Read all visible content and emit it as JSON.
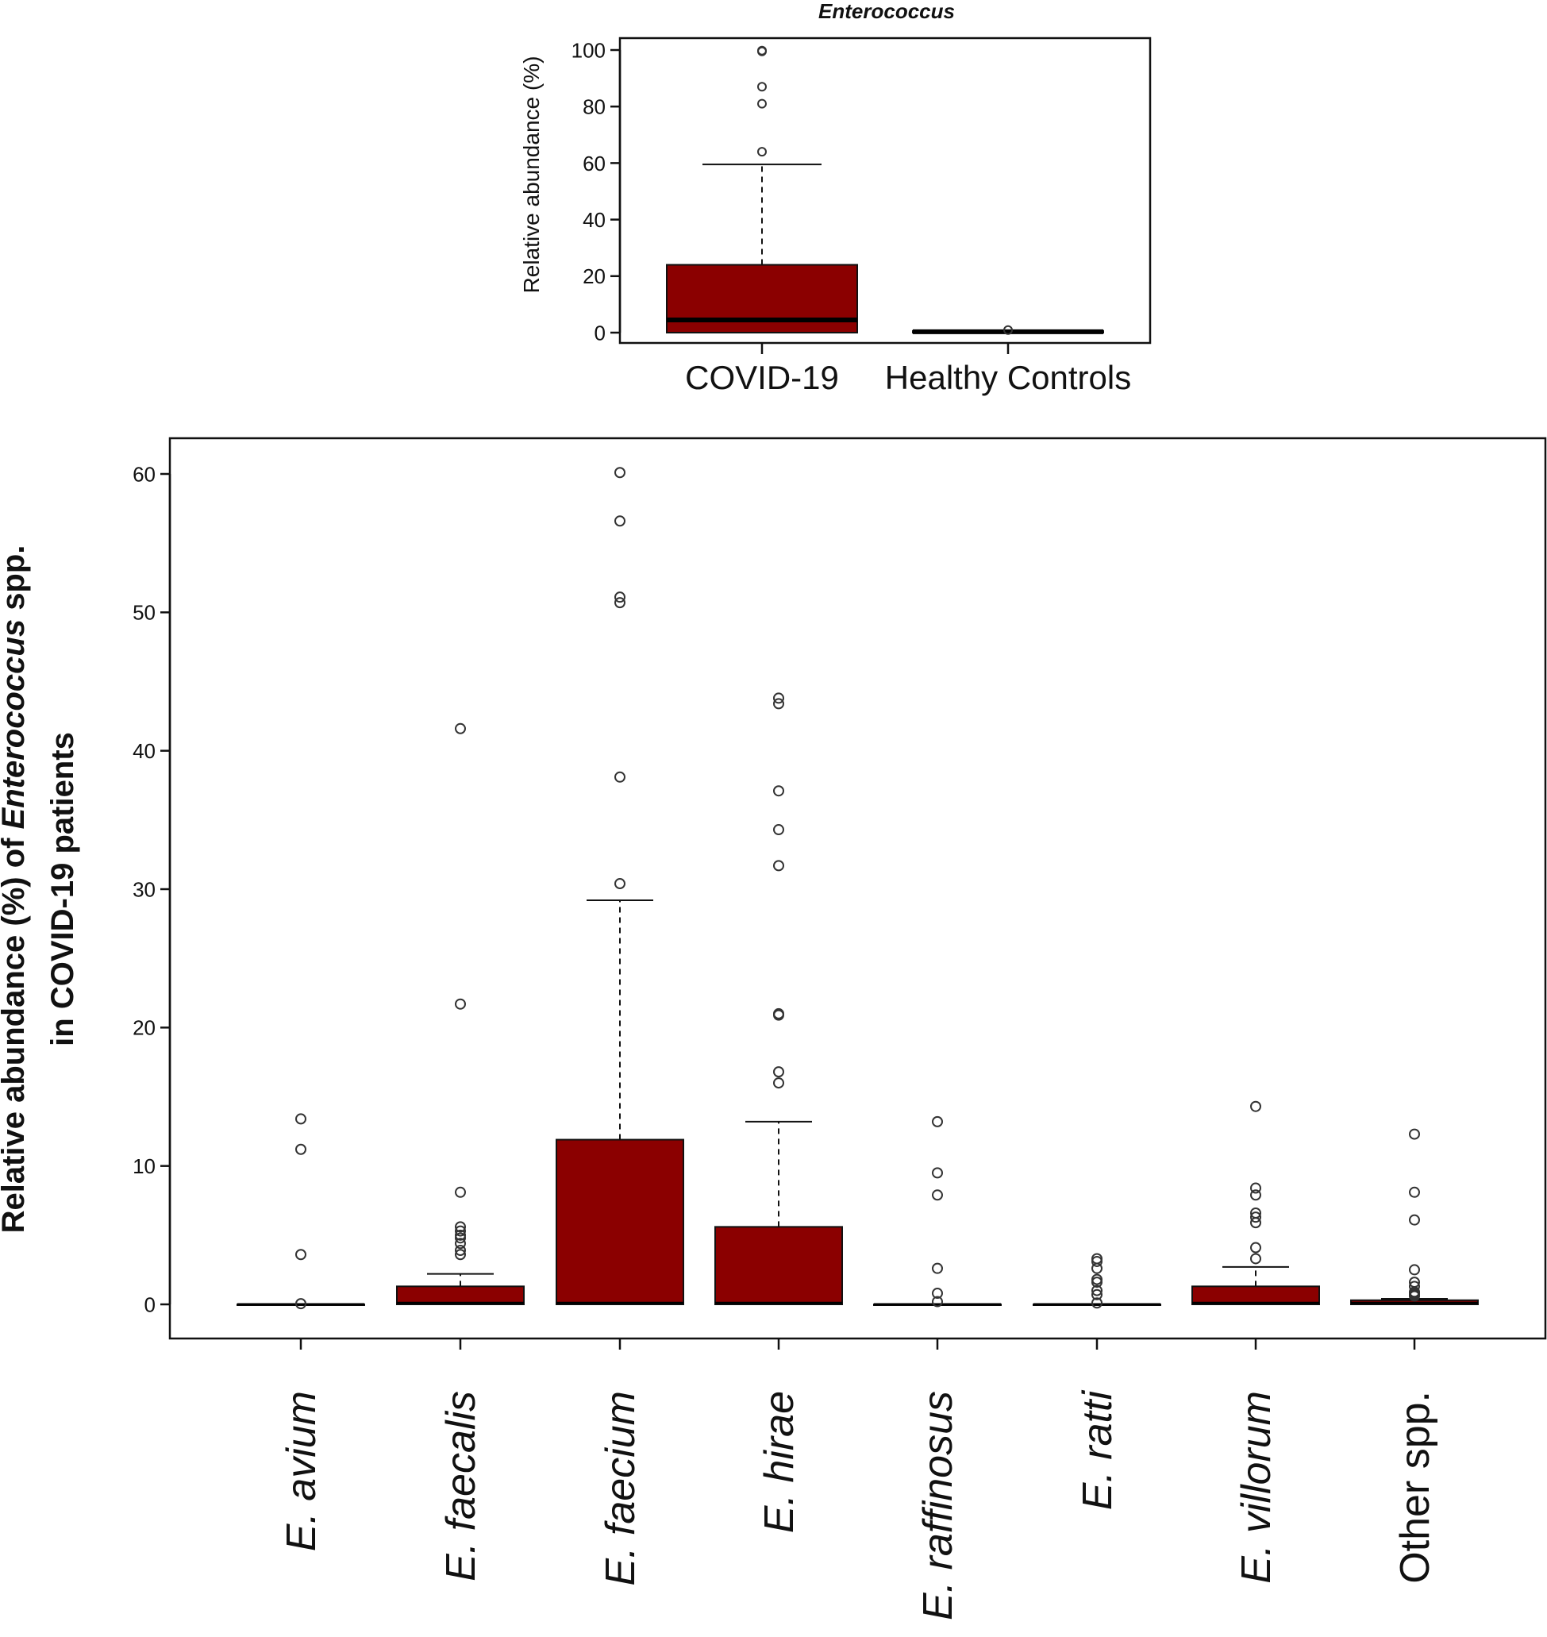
{
  "colors": {
    "box_fill": "#8B0000",
    "outline": "#111111",
    "outlier": "#333333"
  },
  "chart_data": [
    {
      "id": "top",
      "type": "boxplot",
      "title": "Enterococcus",
      "ylabel": "Relative abundance (%)",
      "ylim": [
        0,
        100
      ],
      "yticks": [
        0,
        20,
        40,
        60,
        80,
        100
      ],
      "categories": [
        "COVID-19",
        "Healthy Controls"
      ],
      "boxes": [
        {
          "name": "COVID-19",
          "q1": 0,
          "median": 4.5,
          "q3": 24,
          "whisker_low": 0,
          "whisker_high": 59.5,
          "outliers": [
            99.5,
            99.8,
            87,
            81,
            64
          ]
        },
        {
          "name": "Healthy Controls",
          "q1": 0,
          "median": 0.3,
          "q3": 0.6,
          "whisker_low": 0,
          "whisker_high": 0.6,
          "outliers": [
            0.9
          ]
        }
      ]
    },
    {
      "id": "bottom",
      "type": "boxplot",
      "ylabel_parts": [
        "Relative abundance (%) of ",
        "Enterococcus",
        " spp."
      ],
      "ylabel_line2": "in COVID-19 patients",
      "ylim": [
        0,
        60
      ],
      "yticks": [
        0,
        10,
        20,
        30,
        40,
        50,
        60
      ],
      "categories": [
        "E. avium",
        "E. faecalis",
        "E. faecium",
        "E. hirae",
        "E. raffinosus",
        "E. ratti",
        "E. villorum",
        "Other spp."
      ],
      "category_italic": [
        true,
        true,
        true,
        true,
        true,
        true,
        true,
        false
      ],
      "boxes": [
        {
          "name": "E. avium",
          "q1": 0,
          "median": 0,
          "q3": 0,
          "whisker_low": 0,
          "whisker_high": 0,
          "outliers": [
            13.4,
            11.2,
            3.6,
            0.05
          ]
        },
        {
          "name": "E. faecalis",
          "q1": 0,
          "median": 0.1,
          "q3": 1.3,
          "whisker_low": 0,
          "whisker_high": 2.2,
          "outliers": [
            41.6,
            21.7,
            8.1,
            5.6,
            5.3,
            5.0,
            4.8,
            4.4,
            3.9,
            3.6
          ]
        },
        {
          "name": "E. faecium",
          "q1": 0,
          "median": 0.1,
          "q3": 11.9,
          "whisker_low": 0,
          "whisker_high": 29.2,
          "outliers": [
            60.1,
            56.6,
            51.1,
            50.7,
            38.1,
            30.4
          ]
        },
        {
          "name": "E. hirae",
          "q1": 0,
          "median": 0.1,
          "q3": 5.6,
          "whisker_low": 0,
          "whisker_high": 13.2,
          "outliers": [
            43.8,
            43.4,
            37.1,
            34.3,
            31.7,
            21.0,
            20.9,
            16.8,
            16.0
          ]
        },
        {
          "name": "E. raffinosus",
          "q1": 0,
          "median": 0,
          "q3": 0,
          "whisker_low": 0,
          "whisker_high": 0,
          "outliers": [
            13.2,
            9.5,
            7.9,
            2.6,
            0.8,
            0.2
          ]
        },
        {
          "name": "E. ratti",
          "q1": 0,
          "median": 0,
          "q3": 0,
          "whisker_low": 0,
          "whisker_high": 0,
          "outliers": [
            3.3,
            3.1,
            2.6,
            1.8,
            1.6,
            1.0,
            0.7,
            0.1
          ]
        },
        {
          "name": "E. villorum",
          "q1": 0,
          "median": 0.1,
          "q3": 1.3,
          "whisker_low": 0,
          "whisker_high": 2.7,
          "outliers": [
            14.3,
            8.4,
            7.9,
            6.6,
            6.3,
            5.9,
            4.1,
            3.3
          ]
        },
        {
          "name": "Other spp.",
          "q1": 0,
          "median": 0.1,
          "q3": 0.3,
          "whisker_low": 0,
          "whisker_high": 0.4,
          "outliers": [
            12.3,
            8.1,
            6.1,
            2.5,
            1.6,
            1.3,
            0.9,
            0.8,
            0.7,
            0.6
          ]
        }
      ]
    }
  ]
}
